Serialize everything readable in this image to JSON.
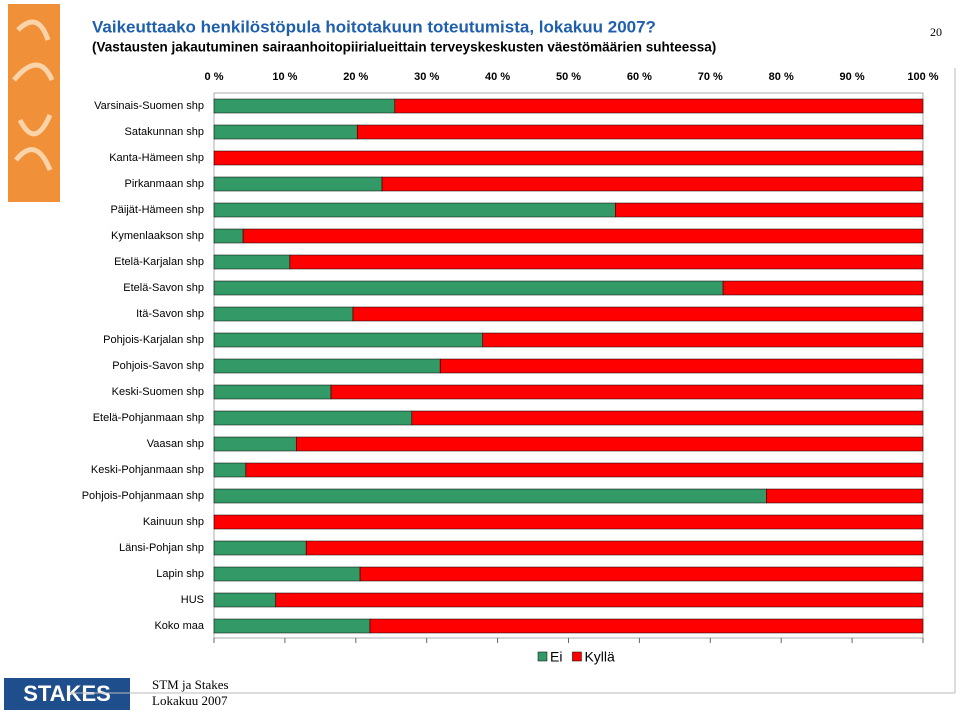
{
  "chart_data": {
    "type": "stacked-barh",
    "title": "Vaikeuttaako henkilöstöpula hoitotakuun toteutumista, lokakuu 2007?",
    "subtitle": "(Vastausten jakautuminen sairaanhoitopiirialueittain terveyskeskusten väestömäärien suhteessa)",
    "page_number": "20",
    "footer": [
      "STM ja Stakes",
      "Lokakuu 2007"
    ],
    "logo": "STAKES",
    "categories": [
      "Varsinais-Suomen shp",
      "Satakunnan shp",
      "Kanta-Hämeen shp",
      "Pirkanmaan shp",
      "Päijät-Hämeen shp",
      "Kymenlaakson shp",
      "Etelä-Karjalan shp",
      "Etelä-Savon shp",
      "Itä-Savon shp",
      "Pohjois-Karjalan shp",
      "Pohjois-Savon shp",
      "Keski-Suomen shp",
      "Etelä-Pohjanmaan shp",
      "Vaasan shp",
      "Keski-Pohjanmaan shp",
      "Pohjois-Pohjanmaan shp",
      "Kainuun shp",
      "Länsi-Pohjan shp",
      "Lapin shp",
      "HUS",
      "Koko maa"
    ],
    "series": [
      {
        "name": "Ei",
        "color": "#339966",
        "values": [
          25.5,
          20.2,
          0,
          23.7,
          56.6,
          4.1,
          10.7,
          71.8,
          19.6,
          37.9,
          31.9,
          16.5,
          27.9,
          11.6,
          4.5,
          77.9,
          0,
          13.0,
          20.6,
          8.7,
          22.0
        ]
      },
      {
        "name": "Kyllä",
        "color": "#ff0000",
        "values": [
          74.5,
          79.8,
          100,
          76.3,
          43.4,
          95.9,
          89.3,
          28.2,
          80.4,
          62.1,
          68.1,
          83.5,
          72.1,
          88.4,
          95.5,
          22.1,
          100,
          87.0,
          79.4,
          91.3,
          78.0
        ]
      }
    ],
    "xlim": [
      0,
      100
    ],
    "xticks": [
      {
        "value": 0,
        "label": "0 %"
      },
      {
        "value": 10,
        "label": "10 %"
      },
      {
        "value": 20,
        "label": "20 %"
      },
      {
        "value": 30,
        "label": "30 %"
      },
      {
        "value": 40,
        "label": "40 %"
      },
      {
        "value": 50,
        "label": "50 %"
      },
      {
        "value": 60,
        "label": "60 %"
      },
      {
        "value": 70,
        "label": "70 %"
      },
      {
        "value": 80,
        "label": "80 %"
      },
      {
        "value": 90,
        "label": "90 %"
      },
      {
        "value": 100,
        "label": "100 %"
      }
    ],
    "grid": false,
    "legend": "bottom"
  }
}
